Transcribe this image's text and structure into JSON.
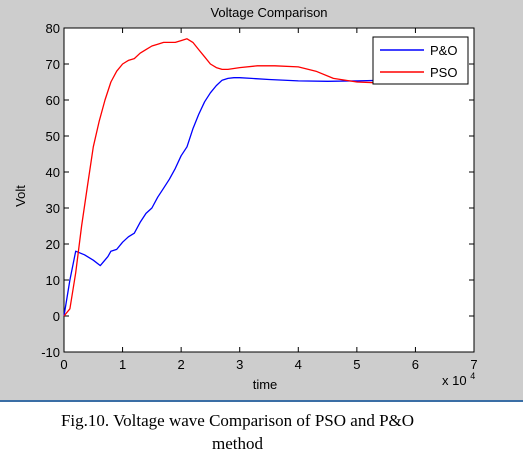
{
  "chart_data": {
    "type": "line",
    "title": "Voltage Comparison",
    "xlabel": "time",
    "ylabel": "Volt",
    "x_multiplier_label": "x 10",
    "x_multiplier_exponent": "4",
    "xlim": [
      0,
      7
    ],
    "ylim": [
      -10,
      80
    ],
    "xticks": [
      "0",
      "1",
      "2",
      "3",
      "4",
      "5",
      "6",
      "7"
    ],
    "yticks": [
      "-10",
      "0",
      "10",
      "20",
      "30",
      "40",
      "50",
      "60",
      "70",
      "80"
    ],
    "legend_position": "top-right",
    "grid": false,
    "series": [
      {
        "name": "P&O",
        "color": "#0000ff",
        "x": [
          0,
          0.1,
          0.2,
          0.35,
          0.5,
          0.62,
          0.75,
          0.8,
          0.9,
          1.0,
          1.1,
          1.2,
          1.3,
          1.4,
          1.5,
          1.6,
          1.7,
          1.8,
          1.9,
          2.0,
          2.1,
          2.2,
          2.3,
          2.4,
          2.5,
          2.6,
          2.7,
          2.8,
          2.9,
          3.0,
          3.2,
          3.5,
          4.0,
          4.5,
          5.0,
          5.5
        ],
        "y": [
          0,
          10,
          18,
          17,
          15.5,
          14,
          16.5,
          18,
          18.5,
          20.5,
          22,
          23,
          26,
          28.5,
          30,
          33,
          35.5,
          38,
          41,
          44.5,
          47,
          52,
          56,
          59.5,
          62,
          64,
          65.5,
          66,
          66.2,
          66.2,
          66,
          65.7,
          65.3,
          65.2,
          65.3,
          65.5
        ]
      },
      {
        "name": "PSO",
        "color": "#ff0000",
        "x": [
          0,
          0.1,
          0.2,
          0.3,
          0.4,
          0.5,
          0.6,
          0.7,
          0.8,
          0.9,
          1.0,
          1.1,
          1.2,
          1.3,
          1.4,
          1.5,
          1.6,
          1.7,
          1.8,
          1.9,
          2.0,
          2.1,
          2.2,
          2.3,
          2.4,
          2.5,
          2.6,
          2.7,
          2.8,
          3.0,
          3.3,
          3.6,
          4.0,
          4.3,
          4.6,
          5.0,
          5.3,
          5.5
        ],
        "y": [
          0,
          2,
          12,
          25,
          36,
          47,
          54,
          60,
          65,
          68,
          70,
          71,
          71.5,
          73,
          74,
          75,
          75.5,
          76,
          76,
          76,
          76.5,
          77,
          76,
          74,
          72,
          70,
          69,
          68.5,
          68.5,
          69,
          69.5,
          69.5,
          69.2,
          68,
          66,
          65,
          64.8,
          65.2
        ]
      }
    ]
  },
  "caption": {
    "line1": "Fig.10. Voltage wave Comparison of PSO and P&O",
    "line2": "method"
  }
}
